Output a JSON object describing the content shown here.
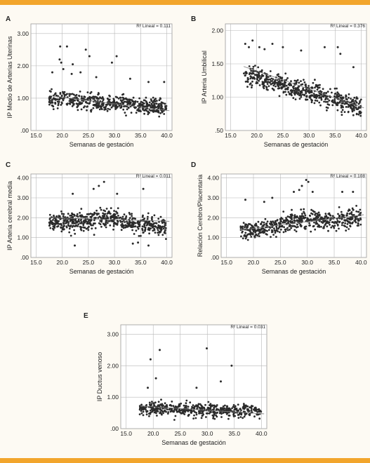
{
  "chart_data": [
    {
      "panel": "A",
      "type": "scatter",
      "xlabel": "Semanas de gestación",
      "ylabel": "IP Medio de Arterias Uterinas",
      "xticks": [
        "15.0",
        "20.0",
        "25.0",
        "30.0",
        "35.0",
        "40.0"
      ],
      "yticks": [
        ".00",
        "1.00",
        "2.00",
        "3.00"
      ],
      "xlim": [
        14,
        41
      ],
      "ylim": [
        0,
        3.3
      ],
      "annotation": "R² Lineal = 0.111",
      "fit_line": {
        "x": [
          17.5,
          40.5
        ],
        "y": [
          1.08,
          0.61
        ]
      },
      "cloud": {
        "x_range": [
          17.5,
          40
        ],
        "trend_start": 1.0,
        "trend_end": 0.7,
        "spread": 0.2,
        "n": 520
      },
      "outliers": [
        [
          19.6,
          2.6
        ],
        [
          19.5,
          2.2
        ],
        [
          19.8,
          2.1
        ],
        [
          20.9,
          2.6
        ],
        [
          22.0,
          2.05
        ],
        [
          23.5,
          1.8
        ],
        [
          24.5,
          2.5
        ],
        [
          25.2,
          2.3
        ],
        [
          29.5,
          2.1
        ],
        [
          30.4,
          2.3
        ],
        [
          20.2,
          1.9
        ],
        [
          18.1,
          1.8
        ],
        [
          21.8,
          1.75
        ],
        [
          26.5,
          1.65
        ],
        [
          33.0,
          1.6
        ],
        [
          36.5,
          1.5
        ],
        [
          39.5,
          1.5
        ]
      ],
      "grid": true
    },
    {
      "panel": "B",
      "type": "scatter",
      "xlabel": "Semanas de gestación",
      "ylabel": "IP Arteria Umbilical",
      "xticks": [
        "15.0",
        "20.0",
        "25.0",
        "30.0",
        "35.0",
        "40.0"
      ],
      "yticks": [
        ".50",
        "1.00",
        "1.50",
        "2.00"
      ],
      "xlim": [
        14,
        41
      ],
      "ylim": [
        0.5,
        2.1
      ],
      "annotation": "R² Lineal = 0.376",
      "fit_line": {
        "x": [
          17.5,
          40.5
        ],
        "y": [
          1.46,
          0.84
        ]
      },
      "cloud": {
        "x_range": [
          17.5,
          40
        ],
        "trend_start": 1.35,
        "trend_end": 0.85,
        "spread": 0.13,
        "n": 560
      },
      "outliers": [
        [
          17.8,
          1.8
        ],
        [
          18.5,
          1.75
        ],
        [
          19.2,
          1.85
        ],
        [
          20.5,
          1.75
        ],
        [
          21.5,
          1.72
        ],
        [
          23.0,
          1.8
        ],
        [
          25.0,
          1.75
        ],
        [
          28.5,
          1.7
        ],
        [
          33.0,
          1.75
        ],
        [
          36.0,
          1.65
        ],
        [
          38.5,
          1.45
        ],
        [
          35.5,
          1.75
        ]
      ],
      "grid": true
    },
    {
      "panel": "C",
      "type": "scatter",
      "xlabel": "Semanas de gestación",
      "ylabel": "IP Arteria cerebral media",
      "xticks": [
        "15.0",
        "20.0",
        "25.0",
        "30.0",
        "35.0",
        "40.0"
      ],
      "yticks": [
        ".00",
        "1.00",
        "2.00",
        "3.00",
        "4.00"
      ],
      "xlim": [
        14,
        41
      ],
      "ylim": [
        0,
        4.2
      ],
      "annotation": "R² Lineal = 0.011",
      "fit_line": {
        "x": [
          17.5,
          40.5
        ],
        "y": [
          2.0,
          1.82
        ]
      },
      "cloud": {
        "x_range": [
          17.5,
          40
        ],
        "trend_start": 1.8,
        "trend_end": 1.6,
        "spread": 0.42,
        "bulge": 0.3,
        "n": 560
      },
      "outliers": [
        [
          28.0,
          3.8
        ],
        [
          27.0,
          3.6
        ],
        [
          26.0,
          3.45
        ],
        [
          35.5,
          3.45
        ],
        [
          22.0,
          3.2
        ],
        [
          30.5,
          3.2
        ],
        [
          22.4,
          0.6
        ],
        [
          33.5,
          0.7
        ],
        [
          34.5,
          0.75
        ],
        [
          36.5,
          0.6
        ]
      ],
      "grid": true
    },
    {
      "panel": "D",
      "type": "scatter",
      "xlabel": "Semanas de gestación",
      "ylabel": "Relación Cerebro/Placentaria",
      "xticks": [
        "15.0",
        "20.0",
        "25.0",
        "30.0",
        "35.0",
        "40.0"
      ],
      "yticks": [
        ".00",
        "1.00",
        "2.00",
        "3.00",
        "4.00"
      ],
      "xlim": [
        14,
        41
      ],
      "ylim": [
        0,
        4.2
      ],
      "annotation": "R² Lineal = 0.108",
      "fit_line": {
        "x": [
          17.5,
          40.5
        ],
        "y": [
          1.38,
          2.15
        ]
      },
      "cloud": {
        "x_range": [
          17.5,
          40
        ],
        "trend_start": 1.3,
        "trend_end": 2.0,
        "spread": 0.38,
        "bulge": 0.25,
        "n": 560
      },
      "outliers": [
        [
          29.8,
          3.9
        ],
        [
          30.2,
          3.8
        ],
        [
          29.0,
          3.6
        ],
        [
          28.5,
          3.4
        ],
        [
          31.0,
          3.3
        ],
        [
          27.5,
          3.3
        ],
        [
          36.5,
          3.3
        ],
        [
          38.5,
          3.3
        ],
        [
          18.5,
          2.9
        ],
        [
          22.0,
          2.8
        ],
        [
          23.5,
          3.0
        ]
      ],
      "grid": true
    },
    {
      "panel": "E",
      "type": "scatter",
      "xlabel": "Semanas de gestación",
      "ylabel": "IP Ductus venoso",
      "xticks": [
        "15.0",
        "20.0",
        "25.0",
        "30.0",
        "35.0",
        "40.0"
      ],
      "yticks": [
        ".00",
        "1.00",
        "2.00",
        "3.00"
      ],
      "xlim": [
        14,
        41
      ],
      "ylim": [
        0,
        3.3
      ],
      "annotation": "R² Lineal = 0.031",
      "fit_line": {
        "x": [
          17.5,
          40.5
        ],
        "y": [
          0.72,
          0.47
        ]
      },
      "cloud": {
        "x_range": [
          17.5,
          40
        ],
        "trend_start": 0.65,
        "trend_end": 0.55,
        "spread": 0.18,
        "n": 520
      },
      "outliers": [
        [
          29.9,
          2.55
        ],
        [
          21.2,
          2.5
        ],
        [
          19.5,
          2.2
        ],
        [
          34.5,
          2.0
        ],
        [
          20.5,
          1.6
        ],
        [
          32.5,
          1.5
        ],
        [
          19.0,
          1.3
        ],
        [
          28.0,
          1.3
        ]
      ],
      "grid": true
    }
  ]
}
